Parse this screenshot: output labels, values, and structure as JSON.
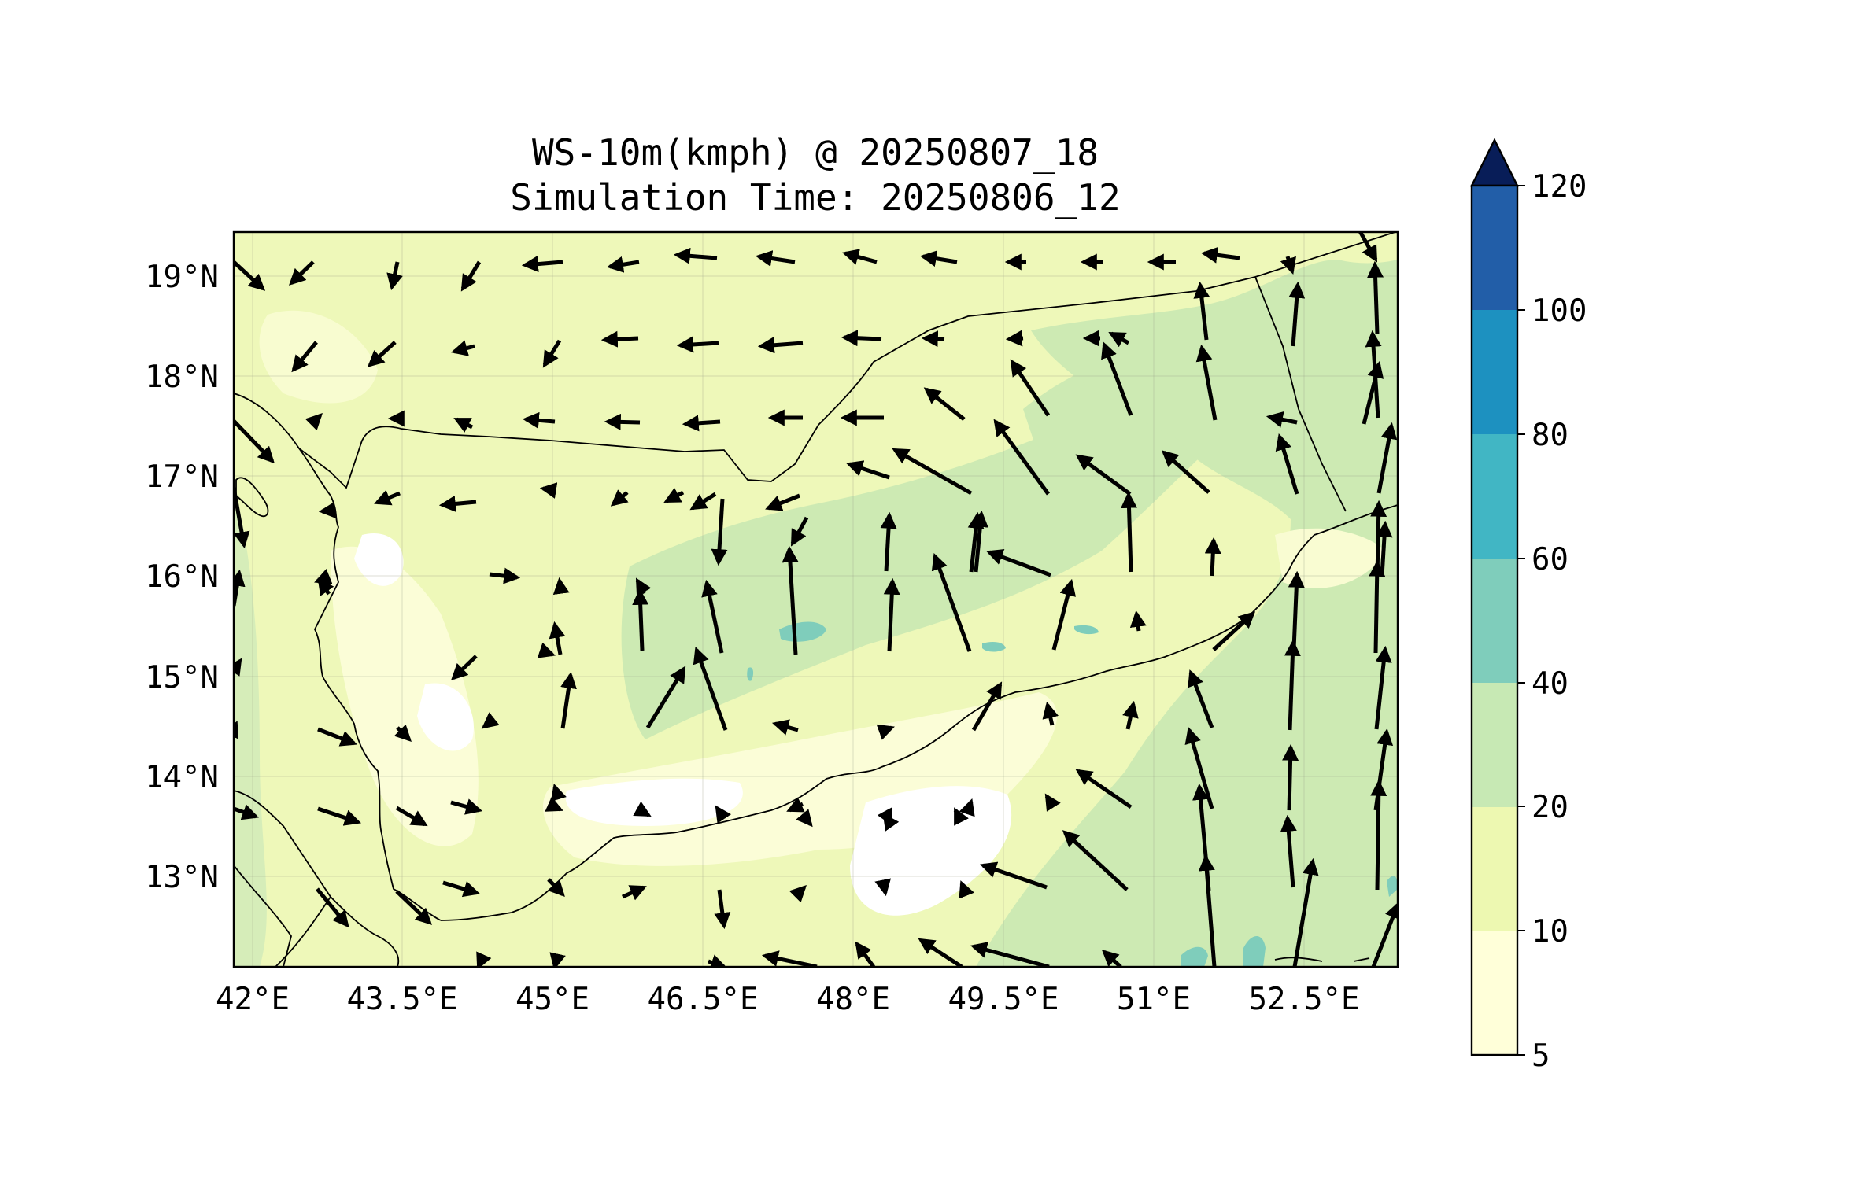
{
  "title": {
    "line1": "WS-10m(kmph) @ 20250807_18",
    "line2": "Simulation Time: 20250806_12"
  },
  "map": {
    "lon_range": [
      41.7,
      53.3
    ],
    "lat_range": [
      12.1,
      19.45
    ],
    "x_ticks": [
      "42°E",
      "43.5°E",
      "45°E",
      "46.5°E",
      "48°E",
      "49.5°E",
      "51°E",
      "52.5°E"
    ],
    "x_tick_values": [
      42,
      43.5,
      45,
      46.5,
      48,
      49.5,
      51,
      52.5
    ],
    "y_ticks": [
      "19°N",
      "18°N",
      "17°N",
      "16°N",
      "15°N",
      "14°N",
      "13°N"
    ],
    "y_tick_values": [
      19,
      18,
      17,
      16,
      15,
      14,
      13
    ],
    "gridlines": true,
    "coastlines": true,
    "borders": true,
    "quantity": "10 m wind speed (kmph) with wind direction arrows"
  },
  "colorbar": {
    "levels": [
      5,
      10,
      20,
      40,
      60,
      80,
      100,
      120
    ],
    "tick_labels": [
      "5",
      "10",
      "20",
      "40",
      "60",
      "80",
      "100",
      "120"
    ],
    "colors": [
      "#ffffd9",
      "#edf8b1",
      "#c7e9b4",
      "#7fcdbb",
      "#41b6c4",
      "#1d91c0",
      "#225ea8",
      "#0c2c84"
    ],
    "extend": "max",
    "extend_color": "#081d58"
  }
}
